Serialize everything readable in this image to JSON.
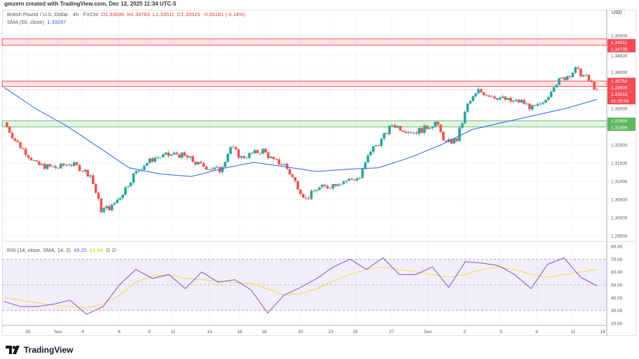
{
  "credit": "gmzern created with TradingView.com, Dec 12, 2025 11:34 UTC-5",
  "legend": {
    "symbol": "British Pound / U.S. Dollar · 4h · FXCM",
    "o": "O1.33696",
    "h": "H1.33783",
    "l": "L1.33511",
    "c": "C1.33515",
    "change": "-0.00181 (-0.14%)",
    "sma_label": "SMA (50, close)",
    "sma_value": "1.33297"
  },
  "rsi_legend": {
    "label": "RSI (14, close, SMA, 14, 2)",
    "rsi_value": "49.25",
    "sma_value": "61.94",
    "extra": "∅ ∅"
  },
  "currency": "USD",
  "logo": "TradingView",
  "colors": {
    "up": "#26a69a",
    "down": "#ef5350",
    "sma": "#2962ff",
    "rsi": "#7e57c2",
    "rsi_ma": "#f5d94c",
    "resistance": "#f23645",
    "support": "#4caf50"
  },
  "chart_data": {
    "type": "candlestick",
    "price_ticks": [
      "1.35000",
      "1.34500",
      "1.34000",
      "1.33000",
      "1.32000",
      "1.31500",
      "1.31000",
      "1.30500",
      "1.30000",
      "1.29500"
    ],
    "price_ylim": [
      1.2935,
      1.3525
    ],
    "x_ticks": [
      "30",
      "Nov",
      "4",
      "6",
      "9",
      "11",
      "13",
      "16",
      "18",
      "20",
      "23",
      "25",
      "27",
      "Dec",
      "3",
      "5",
      "9",
      "11",
      "14"
    ],
    "closes": [
      1.3262,
      1.3213,
      1.318,
      1.3146,
      1.314,
      1.3137,
      1.315,
      1.3137,
      1.3117,
      1.3021,
      1.303,
      1.3069,
      1.3117,
      1.3146,
      1.3165,
      1.317,
      1.3175,
      1.3165,
      1.3146,
      1.3137,
      1.313,
      1.3194,
      1.3165,
      1.3175,
      1.3185,
      1.3155,
      1.3146,
      1.3098,
      1.305,
      1.308,
      1.3085,
      1.3098,
      1.3104,
      1.311,
      1.3185,
      1.3213,
      1.3256,
      1.3244,
      1.3235,
      1.3244,
      1.3262,
      1.3204,
      1.3215,
      1.331,
      1.3348,
      1.3338,
      1.3329,
      1.3319,
      1.3319,
      1.33,
      1.331,
      1.3367,
      1.3385,
      1.3406,
      1.3385,
      1.33515
    ],
    "sma50": [
      1.3358,
      1.33,
      1.3252,
      1.3195,
      1.3137,
      1.312,
      1.3113,
      1.3135,
      1.3152,
      1.314,
      1.3127,
      1.3133,
      1.3137,
      1.3165,
      1.32,
      1.3242,
      1.3262,
      1.3281,
      1.33,
      1.3325
    ],
    "zones": [
      {
        "type": "resistance",
        "top": "1.34911",
        "bottom": "1.34735"
      },
      {
        "type": "resistance",
        "top": "1.33752",
        "bottom": "1.33605"
      },
      {
        "type": "support",
        "top": "1.32659",
        "bottom": "1.32496"
      }
    ],
    "last_price": "1.33515",
    "countdown": "01:25:59",
    "rsi_ticks": [
      "80.00",
      "70.00",
      "60.00",
      "50.00",
      "40.00",
      "30.00",
      "20.00"
    ],
    "rsi_ylim": [
      20,
      80
    ],
    "rsi": [
      37,
      33,
      33,
      35,
      38,
      27,
      33,
      50,
      62,
      55,
      58,
      47,
      60,
      52,
      54,
      46,
      28,
      42,
      48,
      55,
      64,
      70,
      62,
      71,
      58,
      58,
      64,
      48,
      68,
      67,
      65,
      58,
      47,
      66,
      71,
      56,
      49.25
    ],
    "rsi_ma": [
      40,
      38,
      36,
      34,
      33,
      32,
      35,
      42,
      52,
      57,
      58,
      55,
      54,
      53,
      52,
      51,
      47,
      42,
      43,
      47,
      53,
      58,
      62,
      64,
      62,
      60,
      58,
      56,
      58,
      62,
      64,
      62,
      58,
      56,
      58,
      60,
      61.94
    ]
  }
}
